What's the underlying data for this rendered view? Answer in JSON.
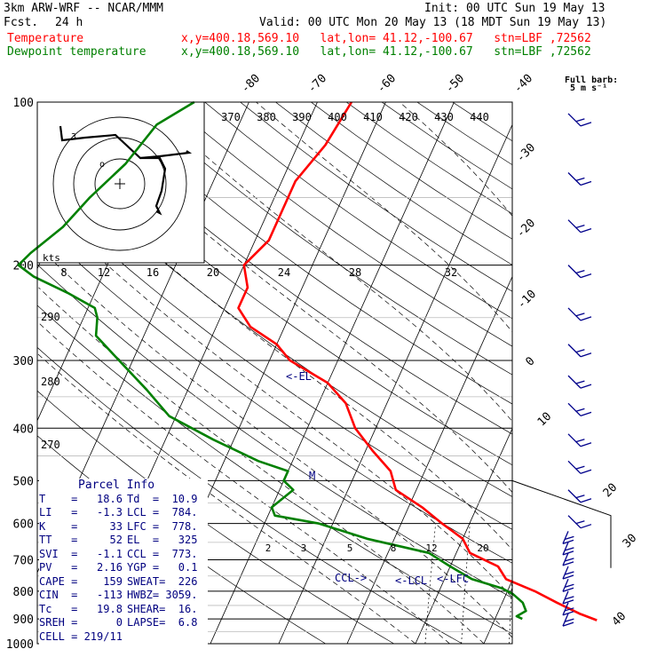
{
  "header": {
    "model": "3km ARW-WRF -- NCAR/MMM",
    "init": "Init: 00 UTC Sun 19 May 13",
    "fcst_label": "Fcst.",
    "fcst_value": "24 h",
    "valid": "Valid: 00 UTC Mon 20 May 13 (18 MDT Sun 19 May 13)",
    "temp_label": "Temperature",
    "dew_label": "Dewpoint temperature",
    "temp_info": "x,y=400.18,569.10   lat,lon= 41.12,-100.67   stn=LBF ,72562",
    "dew_info": "x,y=400.18,569.10   lat,lon= 41.12,-100.67   stn=LBF ,72562",
    "barb_title": "Full barb:",
    "barb_unit": "5 m s⁻¹"
  },
  "colors": {
    "temperature": "#ff0000",
    "dewpoint": "#008000",
    "label_red": "#ff0000",
    "label_green": "#008000",
    "info_navy": "#000080"
  },
  "chart_data": {
    "type": "line",
    "y_scale": "log-pressure",
    "ylim": [
      1000,
      100
    ],
    "pressure_ticks": [
      "100",
      "200",
      "300",
      "400",
      "500",
      "600",
      "700",
      "800",
      "900",
      "1000"
    ],
    "temp_ticks": [
      "-80",
      "-70",
      "-60",
      "-50",
      "-40",
      "-30",
      "-20",
      "-10",
      "0",
      "10",
      "20",
      "30",
      "40"
    ],
    "theta_labels": [
      "370",
      "380",
      "390",
      "400",
      "410",
      "420",
      "430",
      "440"
    ],
    "theta_side_labels": [
      "290",
      "280",
      "270"
    ],
    "mixing_ratio_labels": [
      "2",
      "3",
      "5",
      "8",
      "12",
      "20"
    ],
    "hodograph_label": "kts",
    "hodograph_ticks": [
      "8",
      "12",
      "16",
      "20",
      "24",
      "28",
      "32"
    ],
    "series": [
      {
        "name": "Temperature",
        "values": [
          [
            100,
            -55
          ],
          [
            120,
            -56
          ],
          [
            140,
            -58
          ],
          [
            160,
            -58
          ],
          [
            180,
            -58
          ],
          [
            200,
            -60
          ],
          [
            220,
            -58
          ],
          [
            240,
            -58
          ],
          [
            260,
            -55
          ],
          [
            280,
            -50
          ],
          [
            300,
            -47
          ],
          [
            330,
            -40
          ],
          [
            360,
            -36
          ],
          [
            400,
            -33
          ],
          [
            440,
            -29
          ],
          [
            480,
            -25
          ],
          [
            520,
            -23
          ],
          [
            560,
            -18
          ],
          [
            600,
            -14
          ],
          [
            640,
            -10
          ],
          [
            680,
            -8
          ],
          [
            720,
            -3
          ],
          [
            760,
            -1
          ],
          [
            800,
            4
          ],
          [
            840,
            8
          ],
          [
            880,
            12
          ],
          [
            905,
            15
          ]
        ]
      },
      {
        "name": "Dewpoint temperature",
        "values": [
          [
            100,
            -78
          ],
          [
            110,
            -82
          ],
          [
            130,
            -84
          ],
          [
            150,
            -87
          ],
          [
            170,
            -89
          ],
          [
            190,
            -92
          ],
          [
            200,
            -93
          ],
          [
            210,
            -90
          ],
          [
            225,
            -84
          ],
          [
            240,
            -79
          ],
          [
            250,
            -78
          ],
          [
            270,
            -77
          ],
          [
            300,
            -72
          ],
          [
            340,
            -66
          ],
          [
            380,
            -61
          ],
          [
            420,
            -53
          ],
          [
            460,
            -45
          ],
          [
            480,
            -40
          ],
          [
            500,
            -40
          ],
          [
            520,
            -38
          ],
          [
            560,
            -40
          ],
          [
            580,
            -39
          ],
          [
            600,
            -32
          ],
          [
            640,
            -24
          ],
          [
            680,
            -14
          ],
          [
            720,
            -10
          ],
          [
            760,
            -6
          ],
          [
            790,
            -1
          ],
          [
            810,
            1
          ],
          [
            840,
            3
          ],
          [
            870,
            4
          ],
          [
            890,
            3
          ],
          [
            900,
            4
          ]
        ]
      }
    ],
    "annotations": {
      "el": "<-EL",
      "m": "M",
      "ccl": "CCL->",
      "lcl": "<-LCL",
      "lfc": "<-LFC"
    },
    "wind_pressures": [
      105,
      135,
      165,
      200,
      240,
      280,
      320,
      360,
      410,
      460,
      520,
      580,
      620,
      650,
      680,
      720,
      760,
      800,
      840,
      880
    ]
  },
  "parcel": {
    "title": "Parcel Info",
    "rows": [
      [
        "T    =   18.6",
        "Td  =  10.9"
      ],
      [
        "LI   =   -1.3",
        "LCL =  784."
      ],
      [
        "K    =     33",
        "LFC =  778."
      ],
      [
        "TT   =     52",
        "EL  =   325"
      ],
      [
        "SVI  =   -1.1",
        "CCL =  773."
      ],
      [
        "PV   =   2.16",
        "YGP =   0.1"
      ],
      [
        "CAPE =    159",
        "SWEAT=  226"
      ],
      [
        "CIN  =   -113",
        "HWBZ= 3059."
      ],
      [
        "Tc   =   19.8",
        "SHEAR=  16."
      ],
      [
        "SREH =      0",
        "LAPSE=  6.8"
      ],
      [
        "CELL = 219/11",
        ""
      ]
    ]
  }
}
